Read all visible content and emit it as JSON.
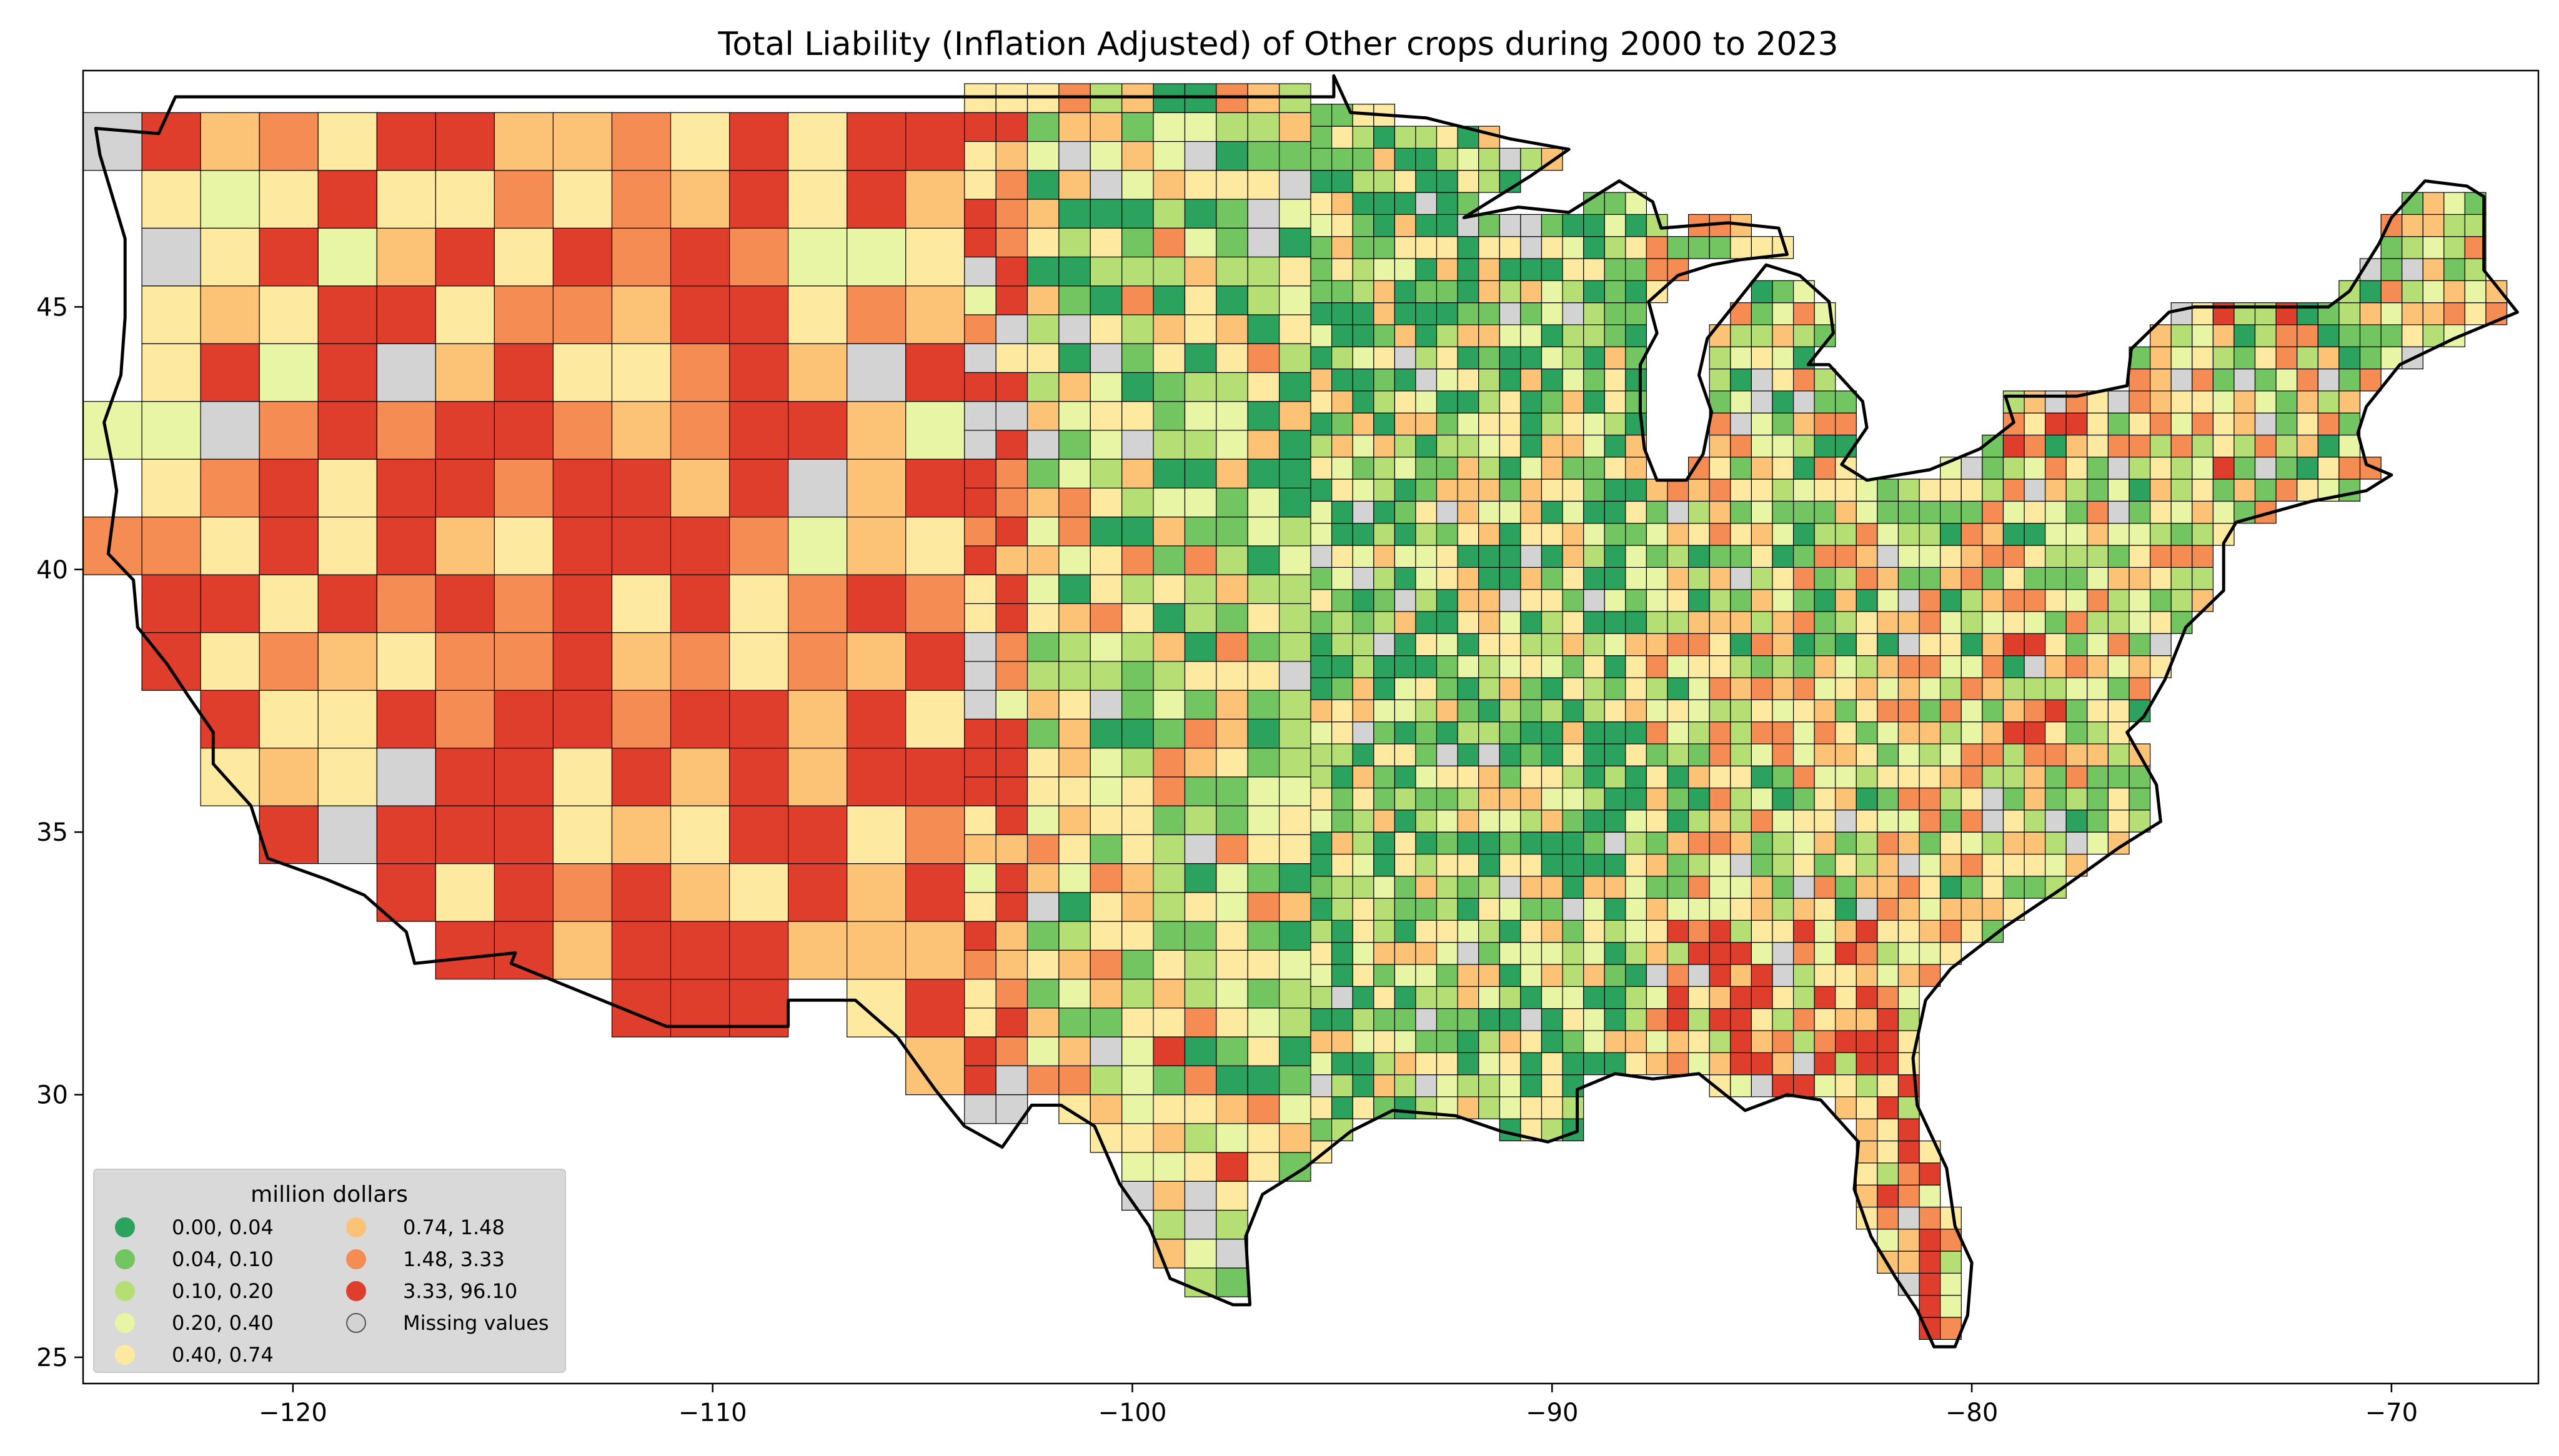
{
  "chart_data": {
    "type": "choropleth",
    "title": "Total Liability  (Inflation Adjusted) of Other crops during 2000 to 2023",
    "xlim": [
      -125,
      -66.5
    ],
    "ylim": [
      24.5,
      49.5
    ],
    "x_ticks": [
      -120,
      -110,
      -100,
      -90,
      -80,
      -70
    ],
    "x_tick_labels": [
      "−120",
      "−110",
      "−100",
      "−90",
      "−80",
      "−70"
    ],
    "y_ticks": [
      25,
      30,
      35,
      40,
      45
    ],
    "y_tick_labels": [
      "25",
      "30",
      "35",
      "40",
      "45"
    ],
    "legend": {
      "title": "million dollars",
      "placement": "lower-left",
      "entries": [
        {
          "label": "0.00,  0.04",
          "color": "#2ca25f"
        },
        {
          "label": "0.04,  0.10",
          "color": "#72c560"
        },
        {
          "label": "0.10,  0.20",
          "color": "#b5df74"
        },
        {
          "label": "0.20,  0.40",
          "color": "#e8f5a4"
        },
        {
          "label": "0.40,  0.74",
          "color": "#fde9a0"
        },
        {
          "label": "0.74,  1.48",
          "color": "#fcc276"
        },
        {
          "label": "1.48,  3.33",
          "color": "#f48c53"
        },
        {
          "label": "3.33, 96.10",
          "color": "#df3e2c"
        },
        {
          "label": "Missing values",
          "color": "#d3d3d3"
        }
      ]
    }
  }
}
